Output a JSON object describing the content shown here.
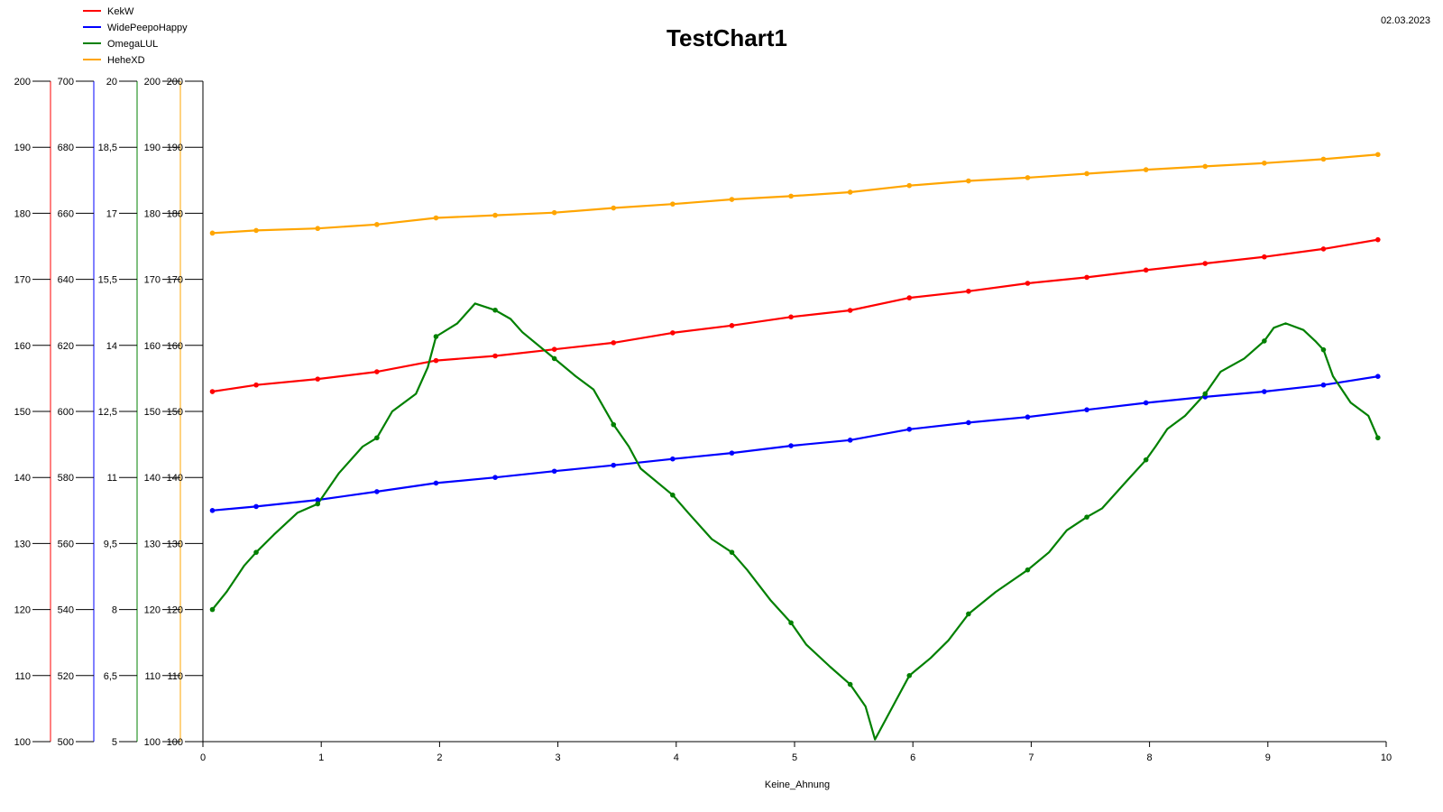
{
  "chart_data": {
    "type": "line",
    "title": "TestChart1",
    "date": "02.03.2023",
    "xlabel": "Keine_Ahnung",
    "xlim": [
      0,
      10
    ],
    "x_ticks": [
      "0",
      "1",
      "2",
      "3",
      "4",
      "5",
      "6",
      "7",
      "8",
      "9",
      "10"
    ],
    "grid": false,
    "legend_position": "top-left",
    "y_axes": [
      {
        "color": "#ff0000",
        "ylim": [
          100,
          200
        ],
        "ticks": [
          "100",
          "110",
          "120",
          "130",
          "140",
          "150",
          "160",
          "170",
          "180",
          "190",
          "200"
        ]
      },
      {
        "color": "#0000ff",
        "ylim": [
          500,
          700
        ],
        "ticks": [
          "500",
          "520",
          "540",
          "560",
          "580",
          "600",
          "620",
          "640",
          "660",
          "680",
          "700"
        ]
      },
      {
        "color": "#008000",
        "ylim": [
          5,
          20
        ],
        "ticks": [
          "5",
          "6,5",
          "8",
          "9,5",
          "11",
          "12,5",
          "14",
          "15,5",
          "17",
          "18,5",
          "20"
        ]
      },
      {
        "color": "#ffa500",
        "ylim": [
          100,
          200
        ],
        "ticks": [
          "100",
          "110",
          "120",
          "130",
          "140",
          "150",
          "160",
          "170",
          "180",
          "190",
          "200"
        ]
      },
      {
        "color": "#000000",
        "ylim": [
          100,
          200
        ],
        "ticks": [
          "100",
          "110",
          "120",
          "130",
          "140",
          "150",
          "160",
          "170",
          "180",
          "190",
          "200"
        ]
      }
    ],
    "series": [
      {
        "name": "KekW",
        "color": "#ff0000",
        "axis": 0,
        "points": [
          [
            0.08,
            153
          ],
          [
            0.45,
            154
          ],
          [
            0.97,
            154.9
          ],
          [
            1.47,
            156
          ],
          [
            1.97,
            157.7
          ],
          [
            2.47,
            158.4
          ],
          [
            2.97,
            159.4
          ],
          [
            3.47,
            160.4
          ],
          [
            3.97,
            161.9
          ],
          [
            4.47,
            163
          ],
          [
            4.97,
            164.3
          ],
          [
            5.47,
            165.3
          ],
          [
            5.97,
            167.2
          ],
          [
            6.47,
            168.2
          ],
          [
            6.97,
            169.4
          ],
          [
            7.47,
            170.3
          ],
          [
            7.97,
            171.4
          ],
          [
            8.47,
            172.4
          ],
          [
            8.97,
            173.4
          ],
          [
            9.47,
            174.6
          ],
          [
            9.93,
            176
          ]
        ]
      },
      {
        "name": "WidePeepoHappy",
        "color": "#0000ff",
        "axis": 1,
        "points": [
          [
            0.08,
            570
          ],
          [
            0.45,
            571.2
          ],
          [
            0.97,
            573.2
          ],
          [
            1.47,
            575.7
          ],
          [
            1.97,
            578.3
          ],
          [
            2.47,
            580
          ],
          [
            2.97,
            581.9
          ],
          [
            3.47,
            583.7
          ],
          [
            3.97,
            585.6
          ],
          [
            4.47,
            587.4
          ],
          [
            4.97,
            589.6
          ],
          [
            5.47,
            591.3
          ],
          [
            5.97,
            594.6
          ],
          [
            6.47,
            596.6
          ],
          [
            6.97,
            598.3
          ],
          [
            7.47,
            600.5
          ],
          [
            7.97,
            602.6
          ],
          [
            8.47,
            604.4
          ],
          [
            8.97,
            606
          ],
          [
            9.47,
            608
          ],
          [
            9.93,
            610.6
          ]
        ]
      },
      {
        "name": "OmegaLUL",
        "color": "#008000",
        "axis": 2,
        "points": [
          [
            0.08,
            8
          ],
          [
            0.2,
            8.4
          ],
          [
            0.35,
            9
          ],
          [
            0.45,
            9.3
          ],
          [
            0.6,
            9.7
          ],
          [
            0.8,
            10.2
          ],
          [
            0.97,
            10.4
          ],
          [
            1.15,
            11.1
          ],
          [
            1.35,
            11.7
          ],
          [
            1.47,
            11.9
          ],
          [
            1.6,
            12.5
          ],
          [
            1.8,
            12.9
          ],
          [
            1.9,
            13.5
          ],
          [
            1.97,
            14.2
          ],
          [
            2.15,
            14.5
          ],
          [
            2.3,
            14.95
          ],
          [
            2.47,
            14.8
          ],
          [
            2.6,
            14.6
          ],
          [
            2.7,
            14.3
          ],
          [
            2.97,
            13.7
          ],
          [
            3.15,
            13.3
          ],
          [
            3.3,
            13
          ],
          [
            3.47,
            12.2
          ],
          [
            3.6,
            11.7
          ],
          [
            3.7,
            11.2
          ],
          [
            3.97,
            10.6
          ],
          [
            4.1,
            10.2
          ],
          [
            4.3,
            9.6
          ],
          [
            4.47,
            9.3
          ],
          [
            4.6,
            8.9
          ],
          [
            4.8,
            8.2
          ],
          [
            4.97,
            7.7
          ],
          [
            5.1,
            7.2
          ],
          [
            5.3,
            6.7
          ],
          [
            5.47,
            6.3
          ],
          [
            5.6,
            5.8
          ],
          [
            5.68,
            5.05
          ],
          [
            5.75,
            5.4
          ],
          [
            5.85,
            5.9
          ],
          [
            5.97,
            6.5
          ],
          [
            6.15,
            6.9
          ],
          [
            6.3,
            7.3
          ],
          [
            6.47,
            7.9
          ],
          [
            6.7,
            8.4
          ],
          [
            6.97,
            8.9
          ],
          [
            7.15,
            9.3
          ],
          [
            7.3,
            9.8
          ],
          [
            7.47,
            10.1
          ],
          [
            7.6,
            10.3
          ],
          [
            7.8,
            10.9
          ],
          [
            7.97,
            11.4
          ],
          [
            8.05,
            11.7
          ],
          [
            8.15,
            12.1
          ],
          [
            8.3,
            12.4
          ],
          [
            8.47,
            12.9
          ],
          [
            8.6,
            13.4
          ],
          [
            8.8,
            13.7
          ],
          [
            8.97,
            14.1
          ],
          [
            9.05,
            14.4
          ],
          [
            9.15,
            14.5
          ],
          [
            9.3,
            14.35
          ],
          [
            9.4,
            14.1
          ],
          [
            9.47,
            13.9
          ],
          [
            9.55,
            13.3
          ],
          [
            9.7,
            12.7
          ],
          [
            9.85,
            12.4
          ],
          [
            9.93,
            11.9
          ]
        ]
      },
      {
        "name": "HeheXD",
        "color": "#ffa500",
        "axis": 3,
        "points": [
          [
            0.08,
            177
          ],
          [
            0.45,
            177.4
          ],
          [
            0.97,
            177.7
          ],
          [
            1.47,
            178.3
          ],
          [
            1.97,
            179.3
          ],
          [
            2.47,
            179.7
          ],
          [
            2.97,
            180.1
          ],
          [
            3.47,
            180.8
          ],
          [
            3.97,
            181.4
          ],
          [
            4.47,
            182.1
          ],
          [
            4.97,
            182.6
          ],
          [
            5.47,
            183.2
          ],
          [
            5.97,
            184.2
          ],
          [
            6.47,
            184.9
          ],
          [
            6.97,
            185.4
          ],
          [
            7.47,
            186
          ],
          [
            7.97,
            186.6
          ],
          [
            8.47,
            187.1
          ],
          [
            8.97,
            187.6
          ],
          [
            9.47,
            188.2
          ],
          [
            9.93,
            188.9
          ]
        ]
      }
    ]
  }
}
